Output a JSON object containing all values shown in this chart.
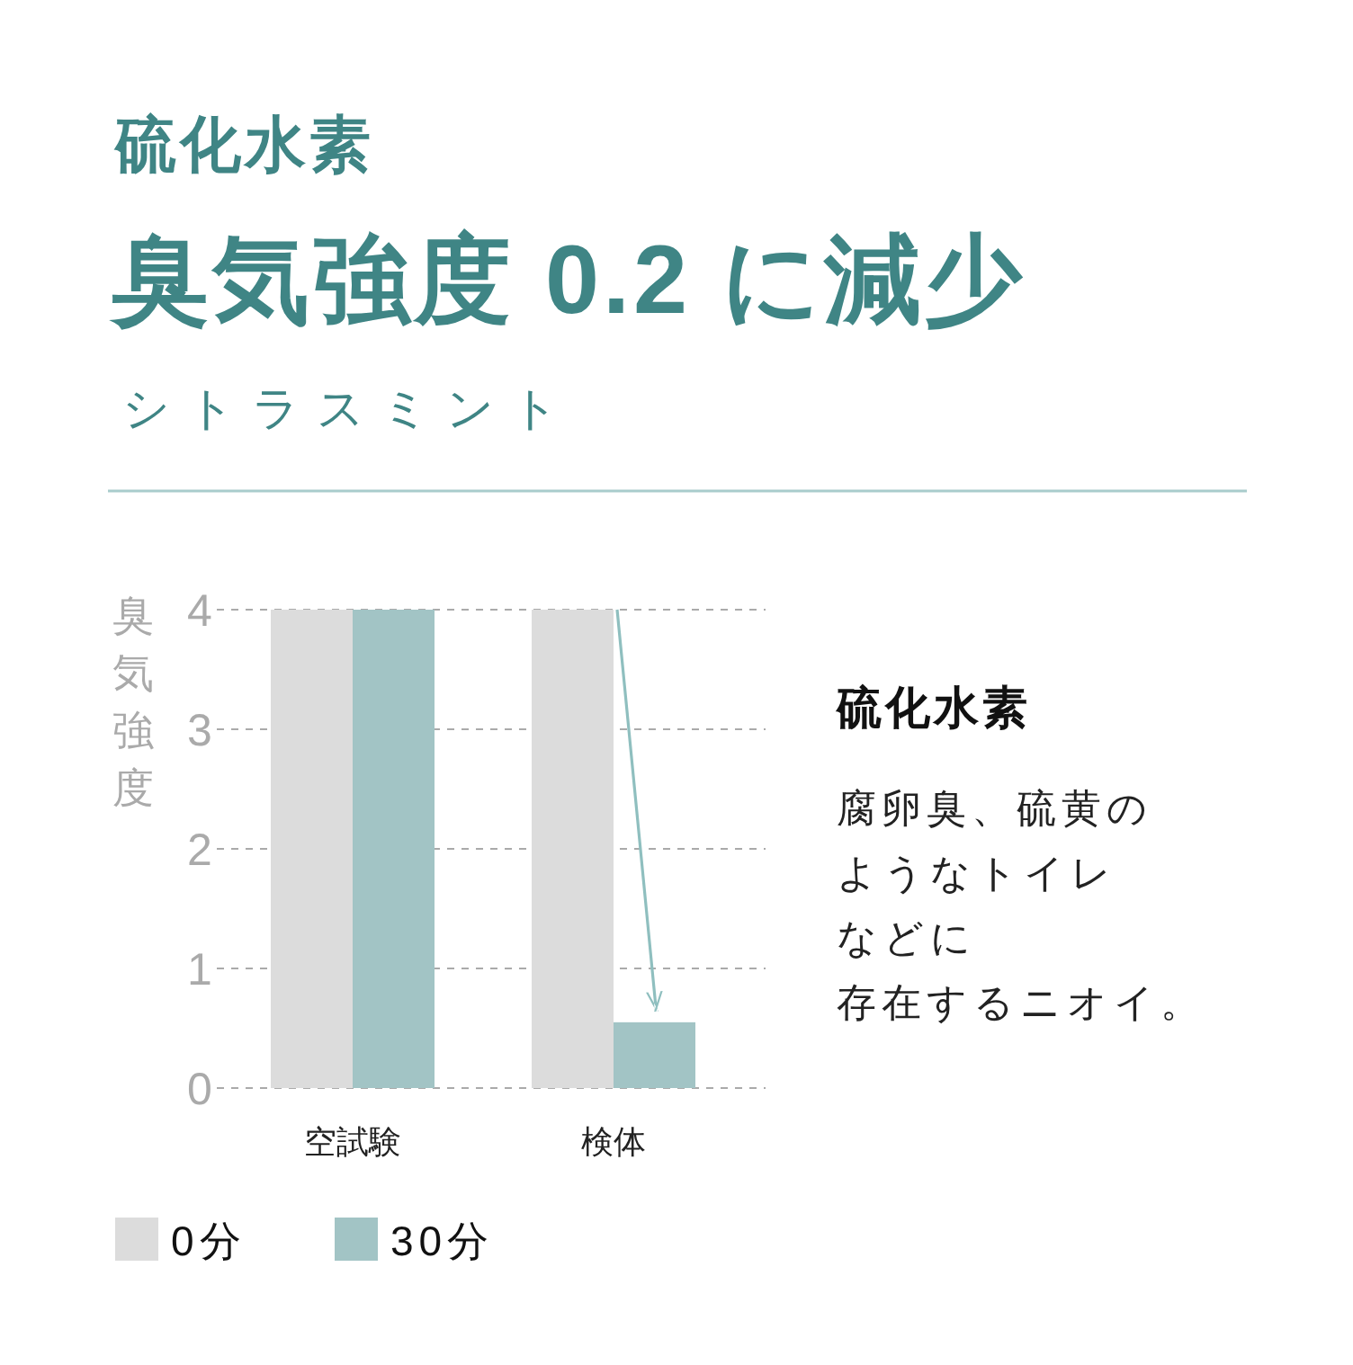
{
  "chart_data": [
    {
      "type": "bar",
      "title": "臭気強度 0.2 に減少",
      "subtitle": "シトラスミント",
      "annotations": [
        "硫化水素"
      ],
      "ylabel": "臭気強度",
      "categories": [
        "空試験",
        "検体"
      ],
      "series": [
        {
          "name": "0分",
          "color": "#dcdcdc",
          "values": [
            4,
            4
          ]
        },
        {
          "name": "30分",
          "color": "#a2c4c5",
          "values": [
            4,
            0.55
          ]
        }
      ],
      "ylim": [
        0,
        4
      ],
      "yticks": [
        0,
        1,
        2,
        3,
        4
      ],
      "grid": "y",
      "legend": "bottom left"
    },
    {
      "type": "other",
      "title": "硫化水素",
      "annotations": [
        "腐卵臭、硫黄の",
        "ようなトイレ",
        "などに",
        "存在するニオイ。"
      ]
    }
  ]
}
